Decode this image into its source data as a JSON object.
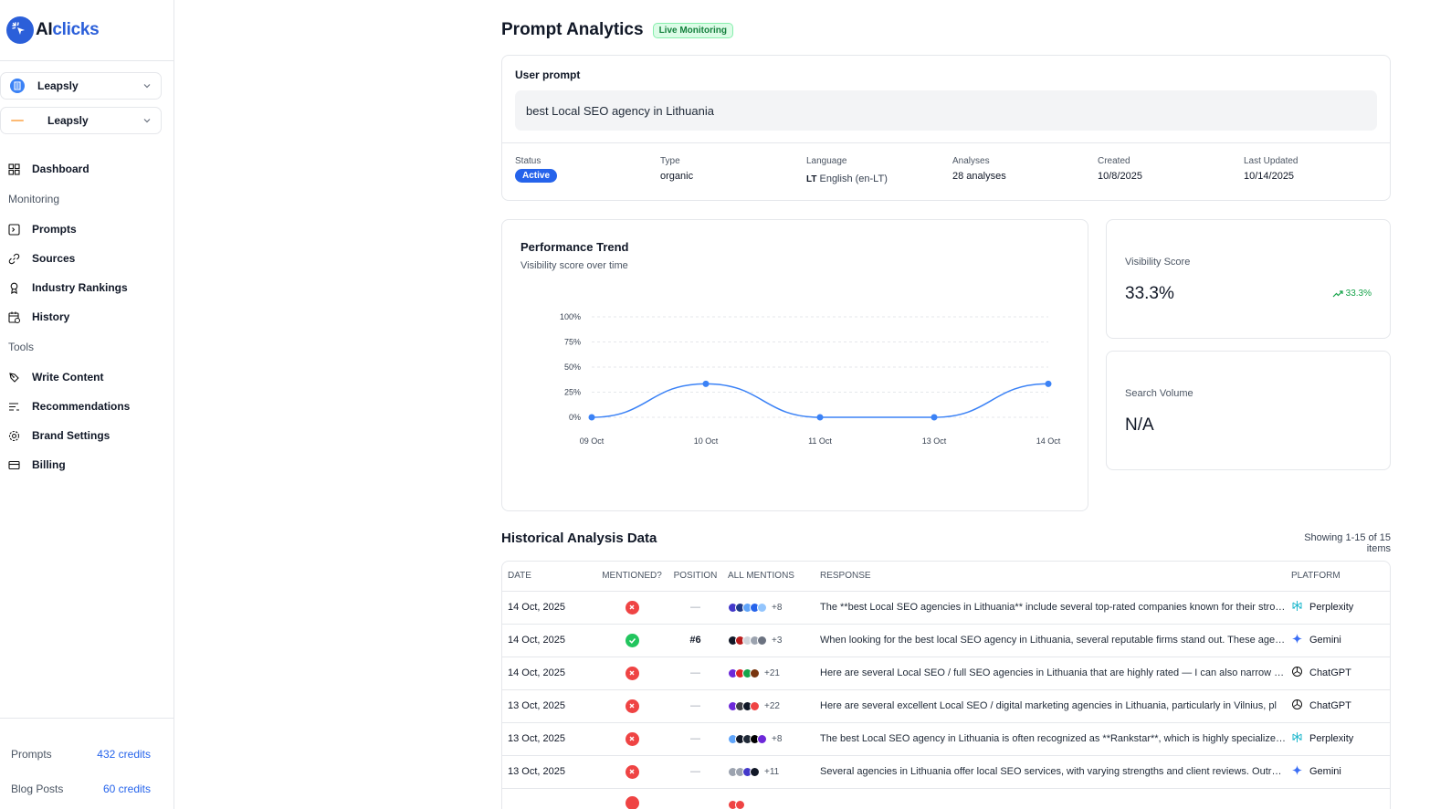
{
  "brand": {
    "ai": "AI",
    "clicks": "clicks"
  },
  "sidebar": {
    "workspace": "Leapsly",
    "project": "Leapsly",
    "nav_top": [
      {
        "label": "Dashboard",
        "icon": "dashboard-icon"
      }
    ],
    "monitoring_label": "Monitoring",
    "monitoring": [
      {
        "label": "Prompts",
        "icon": "prompts-icon"
      },
      {
        "label": "Sources",
        "icon": "link-icon"
      },
      {
        "label": "Industry Rankings",
        "icon": "award-icon"
      },
      {
        "label": "History",
        "icon": "calendar-icon"
      }
    ],
    "tools_label": "Tools",
    "tools": [
      {
        "label": "Write Content",
        "icon": "pen-icon"
      },
      {
        "label": "Recommendations",
        "icon": "list-icon"
      },
      {
        "label": "Brand Settings",
        "icon": "gear-icon"
      },
      {
        "label": "Billing",
        "icon": "card-icon"
      }
    ],
    "credits": [
      {
        "name": "Prompts",
        "value": "432 credits"
      },
      {
        "name": "Blog Posts",
        "value": "60 credits"
      }
    ]
  },
  "header": {
    "title": "Prompt Analytics",
    "badge": "Live Monitoring"
  },
  "prompt": {
    "label": "User prompt",
    "text": "best Local SEO agency in Lithuania",
    "meta": {
      "status_label": "Status",
      "status": "Active",
      "type_label": "Type",
      "type": "organic",
      "language_label": "Language",
      "language_code": "LT",
      "language": "English (en-LT)",
      "analyses_label": "Analyses",
      "analyses": "28 analyses",
      "created_label": "Created",
      "created": "10/8/2025",
      "updated_label": "Last Updated",
      "updated": "10/14/2025"
    }
  },
  "trend": {
    "title": "Performance Trend",
    "subtitle": "Visibility score over time"
  },
  "chart_data": {
    "type": "line",
    "title": "Performance Trend",
    "subtitle": "Visibility score over time",
    "categories": [
      "09 Oct",
      "10 Oct",
      "11 Oct",
      "13 Oct",
      "14 Oct"
    ],
    "values": [
      0,
      33.3,
      0,
      0,
      33.3
    ],
    "ylim": [
      0,
      100
    ],
    "yticks": [
      "100%",
      "75%",
      "50%",
      "25%",
      "0%"
    ],
    "ytick_values": [
      100,
      75,
      50,
      25,
      0
    ],
    "color": "#3b82f6",
    "grid": true
  },
  "stats": {
    "visibility_label": "Visibility Score",
    "visibility": "33.3%",
    "visibility_delta": "33.3%",
    "volume_label": "Search Volume",
    "volume": "N/A"
  },
  "history": {
    "title": "Historical Analysis Data",
    "count": "Showing 1-15 of 15 items",
    "columns": [
      "DATE",
      "MENTIONED?",
      "POSITION",
      "ALL MENTIONS",
      "RESPONSE",
      "PLATFORM"
    ],
    "rows": [
      {
        "date": "14 Oct, 2025",
        "mentioned": false,
        "position": "—",
        "more": "+8",
        "colors": [
          "#4338ca",
          "#1e3a8a",
          "#60a5fa",
          "#2563eb",
          "#93c5fd"
        ],
        "response": "The **best Local SEO agencies in Lithuania** include several top-rated companies known for their strong results",
        "platform": "Perplexity",
        "platform_icon": "perplexity-icon"
      },
      {
        "date": "14 Oct, 2025",
        "mentioned": true,
        "position": "#6",
        "more": "+3",
        "colors": [
          "#111827",
          "#b91c1c",
          "#d1d5db",
          "#9ca3af",
          "#6b7280"
        ],
        "response": "When looking for the best local SEO agency in Lithuania, several reputable firms stand out. These agencies",
        "platform": "Gemini",
        "platform_icon": "gemini-icon"
      },
      {
        "date": "14 Oct, 2025",
        "mentioned": false,
        "position": "—",
        "more": "+21",
        "colors": [
          "#6d28d9",
          "#dc2626",
          "#16a34a",
          "#78350f"
        ],
        "response": "Here are several Local SEO / full SEO agencies in Lithuania that are highly rated — I can also narrow by budget",
        "platform": "ChatGPT",
        "platform_icon": "chatgpt-icon"
      },
      {
        "date": "13 Oct, 2025",
        "mentioned": false,
        "position": "—",
        "more": "+22",
        "colors": [
          "#6d28d9",
          "#3f3f46",
          "#111827",
          "#ef4444"
        ],
        "response": "Here are several excellent Local SEO / digital marketing agencies in Lithuania, particularly in Vilnius, pl",
        "platform": "ChatGPT",
        "platform_icon": "chatgpt-icon"
      },
      {
        "date": "13 Oct, 2025",
        "mentioned": false,
        "position": "—",
        "more": "+8",
        "colors": [
          "#60a5fa",
          "#111827",
          "#1f2937",
          "#000000",
          "#6d28d9"
        ],
        "response": "The best Local SEO agency in Lithuania is often recognized as **Rankstar**, which is highly specialized in",
        "platform": "Perplexity",
        "platform_icon": "perplexity-icon"
      },
      {
        "date": "13 Oct, 2025",
        "mentioned": false,
        "position": "—",
        "more": "+11",
        "colors": [
          "#9ca3af",
          "#9ca3af",
          "#4338ca",
          "#111827"
        ],
        "response": "Several agencies in Lithuania offer local SEO services, with varying strengths and client reviews. Outrank",
        "platform": "Gemini",
        "platform_icon": "gemini-icon"
      },
      {
        "date": "",
        "mentioned": false,
        "position": "",
        "more": "",
        "colors": [
          "#ef4444",
          "#ef4444"
        ],
        "response": "",
        "platform": "",
        "platform_icon": "chatgpt-icon"
      }
    ]
  }
}
